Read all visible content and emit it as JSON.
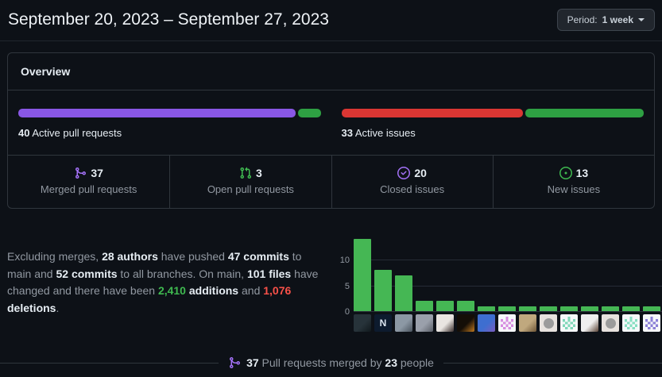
{
  "header": {
    "title": "September 20, 2023 – September 27, 2023",
    "period_button": {
      "label": "Period:",
      "value": "1 week"
    }
  },
  "overview": {
    "title": "Overview",
    "pull_requests": {
      "count": "40",
      "caption": "Active pull requests",
      "bar": [
        {
          "name": "merged",
          "value": 37,
          "color": "#8957e5"
        },
        {
          "name": "open",
          "value": 3,
          "color": "#2ea043"
        }
      ]
    },
    "issues": {
      "count": "33",
      "caption": "Active issues",
      "bar": [
        {
          "name": "closed",
          "value": 20,
          "color": "#da3633"
        },
        {
          "name": "new",
          "value": 13,
          "color": "#2ea043"
        }
      ]
    },
    "stats": [
      {
        "icon": "git-merge-icon",
        "icon_color": "#a371f7",
        "value": "37",
        "label": "Merged pull requests"
      },
      {
        "icon": "git-pull-request-icon",
        "icon_color": "#3fb950",
        "value": "3",
        "label": "Open pull requests"
      },
      {
        "icon": "issue-closed-icon",
        "icon_color": "#a371f7",
        "value": "20",
        "label": "Closed issues"
      },
      {
        "icon": "issue-opened-icon",
        "icon_color": "#3fb950",
        "value": "13",
        "label": "New issues"
      }
    ]
  },
  "summary": {
    "segments": [
      {
        "t": "Excluding merges, "
      },
      {
        "t": "28 authors",
        "s": "strong"
      },
      {
        "t": " have pushed "
      },
      {
        "t": "47 commits",
        "s": "strong"
      },
      {
        "t": " to main and "
      },
      {
        "t": "52 commits",
        "s": "strong"
      },
      {
        "t": " to all branches. On main, "
      },
      {
        "t": "101 files",
        "s": "strong"
      },
      {
        "t": " have changed and there have been "
      },
      {
        "t": "2,410",
        "s": "green"
      },
      {
        "t": " "
      },
      {
        "t": "additions",
        "s": "strong"
      },
      {
        "t": " and "
      },
      {
        "t": "1,076",
        "s": "red"
      },
      {
        "t": " "
      },
      {
        "t": "deletions",
        "s": "strong"
      },
      {
        "t": "."
      }
    ]
  },
  "chart_data": {
    "type": "bar",
    "title": "",
    "xlabel": "",
    "ylabel": "",
    "categories": [
      "author-avatar-1",
      "author-avatar-2",
      "author-avatar-3",
      "author-avatar-4",
      "author-avatar-5",
      "author-avatar-6",
      "author-avatar-7",
      "author-avatar-8",
      "author-avatar-9",
      "author-avatar-10",
      "author-avatar-11",
      "author-avatar-12",
      "author-avatar-13",
      "author-avatar-14",
      "author-avatar-15"
    ],
    "values": [
      14,
      8,
      7,
      2,
      2,
      2,
      1,
      1,
      1,
      1,
      1,
      1,
      1,
      1,
      1
    ],
    "yticks": [
      "0",
      "5",
      "10"
    ],
    "ylim": [
      0,
      15
    ],
    "grid": "horizontal",
    "legend": "none",
    "bar_color": "#45b754",
    "avatars": [
      {
        "kind": "photo",
        "colors": [
          "#27333a",
          "#10181c"
        ]
      },
      {
        "kind": "logo",
        "bg": "#0d1b2e",
        "fg": "#dce6f0",
        "letter": "N"
      },
      {
        "kind": "photo",
        "colors": [
          "#8c98a4",
          "#4a545e"
        ]
      },
      {
        "kind": "photo",
        "colors": [
          "#9aa0ab",
          "#5a5f68"
        ]
      },
      {
        "kind": "photo",
        "colors": [
          "#e9e5e1",
          "#3a2e2c"
        ]
      },
      {
        "kind": "photo",
        "colors": [
          "#140e07",
          "#c27a20"
        ]
      },
      {
        "kind": "photo",
        "colors": [
          "#3e6ed0",
          "#7a5cc0"
        ]
      },
      {
        "kind": "identicon",
        "bg": "#f6f8fa",
        "pattern": "#d78ce0"
      },
      {
        "kind": "photo",
        "colors": [
          "#c0a87e",
          "#6e5637"
        ]
      },
      {
        "kind": "default",
        "bg": "#e7e2de",
        "fg": "#9b9b9b"
      },
      {
        "kind": "identicon",
        "bg": "#f6f8fa",
        "pattern": "#7fd7b8"
      },
      {
        "kind": "photo",
        "colors": [
          "#efefef",
          "#5a4436"
        ]
      },
      {
        "kind": "default",
        "bg": "#e7e2de",
        "fg": "#9b9b9b"
      },
      {
        "kind": "identicon",
        "bg": "#f6f8fa",
        "pattern": "#86dfc1"
      },
      {
        "kind": "identicon",
        "bg": "#f6f8fa",
        "pattern": "#8b7fd7"
      }
    ]
  },
  "footer": {
    "icon_color": "#a371f7",
    "segments": [
      {
        "t": "37",
        "s": "strong"
      },
      {
        "t": " Pull requests merged by "
      },
      {
        "t": "23",
        "s": "strong"
      },
      {
        "t": " people"
      }
    ]
  }
}
